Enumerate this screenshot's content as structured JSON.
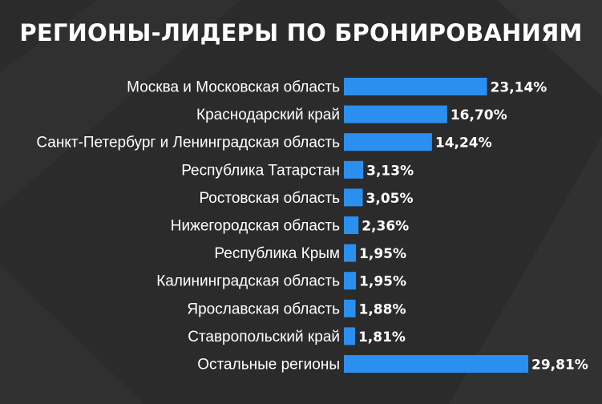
{
  "colors": {
    "background": "#2b2b2b",
    "background_shape": "#343434",
    "bar": "#2b8ff0",
    "text": "#ffffff"
  },
  "chart_data": {
    "type": "bar",
    "orientation": "horizontal",
    "title": "РЕГИОНЫ-ЛИДЕРЫ ПО БРОНИРОВАНИЯМ",
    "categories": [
      "Москва и Московская область",
      "Краснодарский край",
      "Санкт-Петербург и Ленинградская область",
      "Республика Татарстан",
      "Ростовская область",
      "Нижегородская область",
      "Республика Крым",
      "Калининградская область",
      "Ярославская область",
      "Ставропольский край",
      "Остальные регионы"
    ],
    "values": [
      23.14,
      16.7,
      14.24,
      3.13,
      3.05,
      2.36,
      1.95,
      1.95,
      1.88,
      1.81,
      29.81
    ],
    "value_labels": [
      "23,14%",
      "16,70%",
      "14,24%",
      "3,13%",
      "3,05%",
      "2,36%",
      "1,95%",
      "1,95%",
      "1,88%",
      "1,81%",
      "29,81%"
    ],
    "unit": "%",
    "xlim": [
      0,
      29.81
    ],
    "grid": false,
    "legend": "none"
  }
}
